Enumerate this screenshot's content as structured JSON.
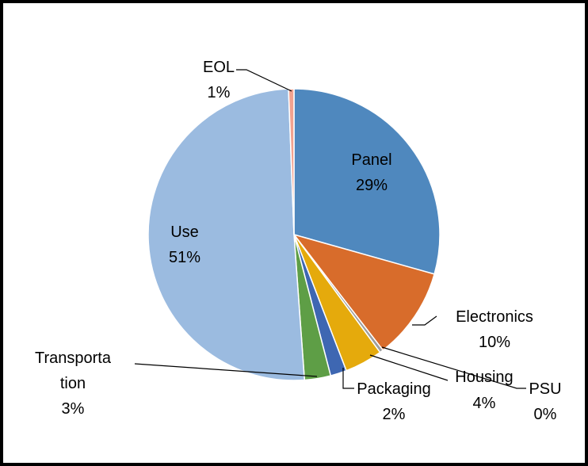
{
  "chart_data": {
    "type": "pie",
    "title": "",
    "slices": [
      {
        "name": "Panel",
        "label_line1": "Panel",
        "label_line2": "29%",
        "value": 29.4,
        "percent_label": "29%",
        "color": "#4F88BE"
      },
      {
        "name": "Electronics",
        "label_line1": "Electronics",
        "label_line2": "10%",
        "value": 10.2,
        "percent_label": "10%",
        "color": "#D86C2B"
      },
      {
        "name": "PSU",
        "label_line1": "PSU",
        "label_line2": "0%",
        "value": 0.4,
        "percent_label": "0%",
        "color": "#9E9E9E"
      },
      {
        "name": "Housing",
        "label_line1": "Housing",
        "label_line2": "4%",
        "value": 4.2,
        "percent_label": "4%",
        "color": "#E5AA0C"
      },
      {
        "name": "Packaging",
        "label_line1": "Packaging",
        "label_line2": "2%",
        "value": 1.8,
        "percent_label": "2%",
        "color": "#3E67B2"
      },
      {
        "name": "Transportation",
        "label_line1": "Transporta",
        "label_line2": "tion",
        "label_line3": "3%",
        "value": 2.9,
        "percent_label": "3%",
        "color": "#5E9E46"
      },
      {
        "name": "Use",
        "label_line1": "Use",
        "label_line2": "51%",
        "value": 50.6,
        "percent_label": "51%",
        "color": "#9BBBE0"
      },
      {
        "name": "EOL",
        "label_line1": "EOL",
        "label_line2": "1%",
        "value": 0.6,
        "percent_label": "1%",
        "color": "#F2A28F"
      }
    ]
  }
}
